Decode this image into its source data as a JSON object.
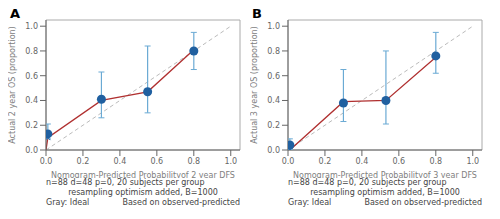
{
  "chart_data": [
    {
      "type": "scatter",
      "title": "A",
      "xlabel": "Nomogram-Predicted Probabilityof 2 year DFS",
      "ylabel": "Actual 2 year OS (proportion)",
      "xlim": [
        0.0,
        1.05
      ],
      "ylim": [
        0.0,
        1.05
      ],
      "xticks": [
        {
          "value": 0,
          "label": "0.0"
        },
        0.2,
        0.4,
        0.6,
        0.8,
        {
          "value": 1,
          "label": "1.0"
        }
      ],
      "yticks": [
        {
          "value": 0,
          "label": "0.0"
        },
        0.2,
        0.4,
        0.6,
        0.8,
        {
          "value": 1,
          "label": "1.0"
        }
      ],
      "grid": false,
      "ideal_line": {
        "x": [
          0,
          1
        ],
        "y": [
          0,
          1
        ],
        "color": "#bbbbbb",
        "line_style": "dashed"
      },
      "calibration_line": {
        "x": [
          0.0,
          0.01,
          0.3,
          0.55,
          0.8
        ],
        "y": [
          0.0,
          0.1,
          0.4,
          0.47,
          0.81
        ],
        "color": "#b03030"
      },
      "points": {
        "x": [
          0.01,
          0.3,
          0.55,
          0.8
        ],
        "y": [
          0.13,
          0.41,
          0.47,
          0.8
        ],
        "color": "#2060a0",
        "error_bars": {
          "lower": [
            0.09,
            0.26,
            0.3,
            0.65
          ],
          "upper": [
            0.21,
            0.63,
            0.84,
            0.95
          ],
          "color": "#6aaad4"
        }
      },
      "marker_point": {
        "x": 0.01,
        "y": 0.1,
        "marker": "x",
        "color": "#2060a0"
      },
      "annotations": [
        "n=88 d=48 p=0, 20 subjects per group",
        "Gray: Ideal",
        "resampling optimism added, B=1000",
        "Based on observed-predicted"
      ]
    },
    {
      "type": "scatter",
      "title": "B",
      "xlabel": "Nomogram-Predicted Probabilityof 3 year DFS",
      "ylabel": "Actual 3 year OS (proportion)",
      "xlim": [
        0.0,
        1.05
      ],
      "ylim": [
        0.0,
        1.05
      ],
      "xticks": [
        {
          "value": 0,
          "label": "0.0"
        },
        0.2,
        0.4,
        0.6,
        0.8,
        {
          "value": 1,
          "label": "1.0"
        }
      ],
      "yticks": [
        {
          "value": 0,
          "label": "0.0"
        },
        0.2,
        0.4,
        0.6,
        0.8,
        {
          "value": 1,
          "label": "1.0"
        }
      ],
      "grid": false,
      "ideal_line": {
        "x": [
          0,
          1
        ],
        "y": [
          0,
          1
        ],
        "color": "#bbbbbb",
        "line_style": "dashed"
      },
      "calibration_line": {
        "x": [
          0.0,
          0.01,
          0.3,
          0.53,
          0.8
        ],
        "y": [
          0.0,
          0.0,
          0.39,
          0.4,
          0.75
        ],
        "color": "#b03030"
      },
      "points": {
        "x": [
          0.01,
          0.3,
          0.53,
          0.8
        ],
        "y": [
          0.04,
          0.38,
          0.4,
          0.76
        ],
        "color": "#2060a0",
        "error_bars": {
          "lower": [
            0.005,
            0.23,
            0.21,
            0.62
          ],
          "upper": [
            0.09,
            0.65,
            0.8,
            0.95
          ],
          "color": "#6aaad4"
        }
      },
      "marker_point": {
        "x": 0.01,
        "y": 0,
        "marker": "x",
        "color": "#2060a0"
      },
      "annotations": [
        "n=88 d=48 p=0, 20 subjects per group",
        "Gray: Ideal",
        "resampling optimism added, B=1000",
        "Based on observed-predicted"
      ]
    }
  ]
}
